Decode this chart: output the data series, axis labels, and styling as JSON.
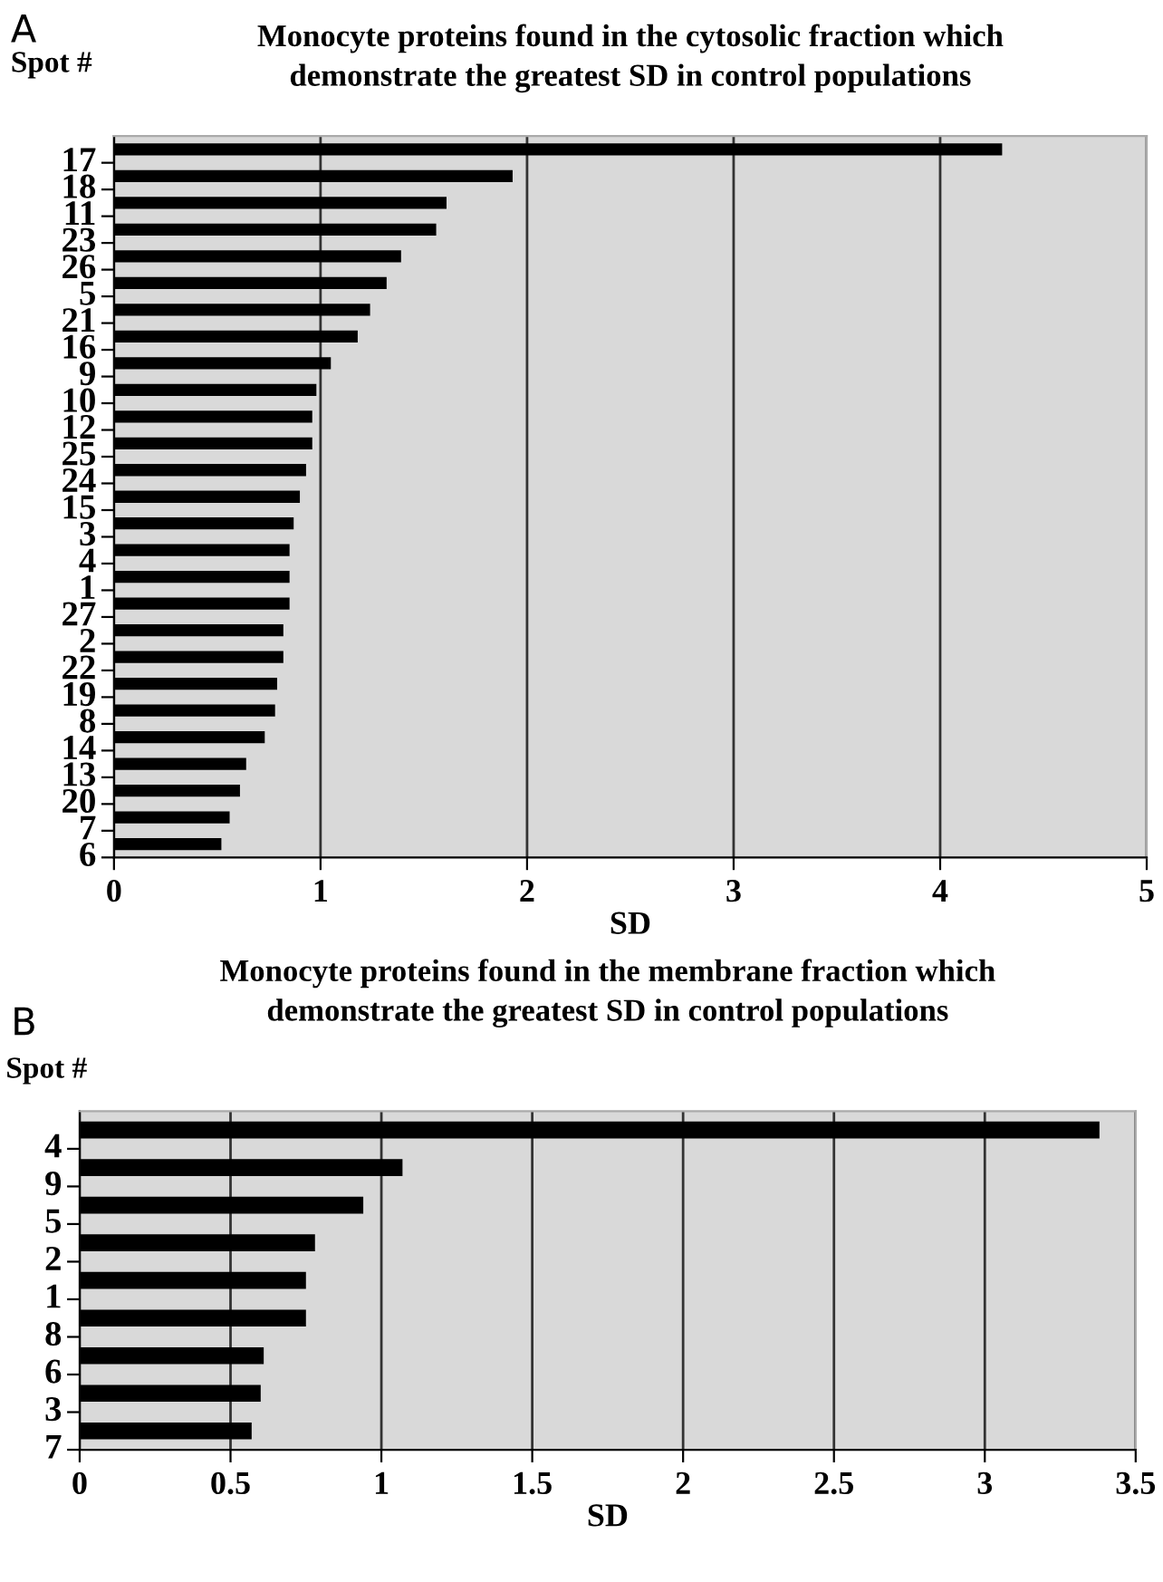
{
  "chart_data": [
    {
      "type": "bar",
      "orientation": "horizontal",
      "title": "Monocyte proteins found in the cytosolic fraction which\ndemonstrate the greatest SD in control populations",
      "xlabel": "SD",
      "ylabel": "Spot #",
      "annotations": [
        "A"
      ],
      "categories": [
        "17",
        "18",
        "11",
        "23",
        "26",
        "5",
        "21",
        "16",
        "9",
        "10",
        "12",
        "25",
        "24",
        "15",
        "3",
        "4",
        "1",
        "27",
        "2",
        "22",
        "19",
        "8",
        "14",
        "13",
        "20",
        "7",
        "6"
      ],
      "series": [
        {
          "color": "#000000",
          "values": [
            4.3,
            1.93,
            1.61,
            1.56,
            1.39,
            1.32,
            1.24,
            1.18,
            1.05,
            0.98,
            0.96,
            0.96,
            0.93,
            0.9,
            0.87,
            0.85,
            0.85,
            0.85,
            0.82,
            0.82,
            0.79,
            0.78,
            0.73,
            0.64,
            0.61,
            0.56,
            0.52
          ]
        }
      ],
      "xlim": [
        0,
        5
      ],
      "xticks": [
        0,
        1,
        2,
        3,
        4,
        5
      ],
      "grid": "x",
      "legend": false
    },
    {
      "type": "bar",
      "orientation": "horizontal",
      "title": "Monocyte proteins found in the membrane fraction which\ndemonstrate the greatest SD in control populations",
      "xlabel": "SD",
      "ylabel": "Spot #",
      "annotations": [
        "B"
      ],
      "categories": [
        "4",
        "9",
        "5",
        "2",
        "1",
        "8",
        "6",
        "3",
        "7"
      ],
      "series": [
        {
          "color": "#000000",
          "values": [
            3.38,
            1.07,
            0.94,
            0.78,
            0.75,
            0.75,
            0.61,
            0.6,
            0.57
          ]
        }
      ],
      "xlim": [
        0,
        3.5
      ],
      "xticks": [
        0,
        0.5,
        1,
        1.5,
        2,
        2.5,
        3,
        3.5
      ],
      "grid": "x",
      "legend": false
    }
  ]
}
